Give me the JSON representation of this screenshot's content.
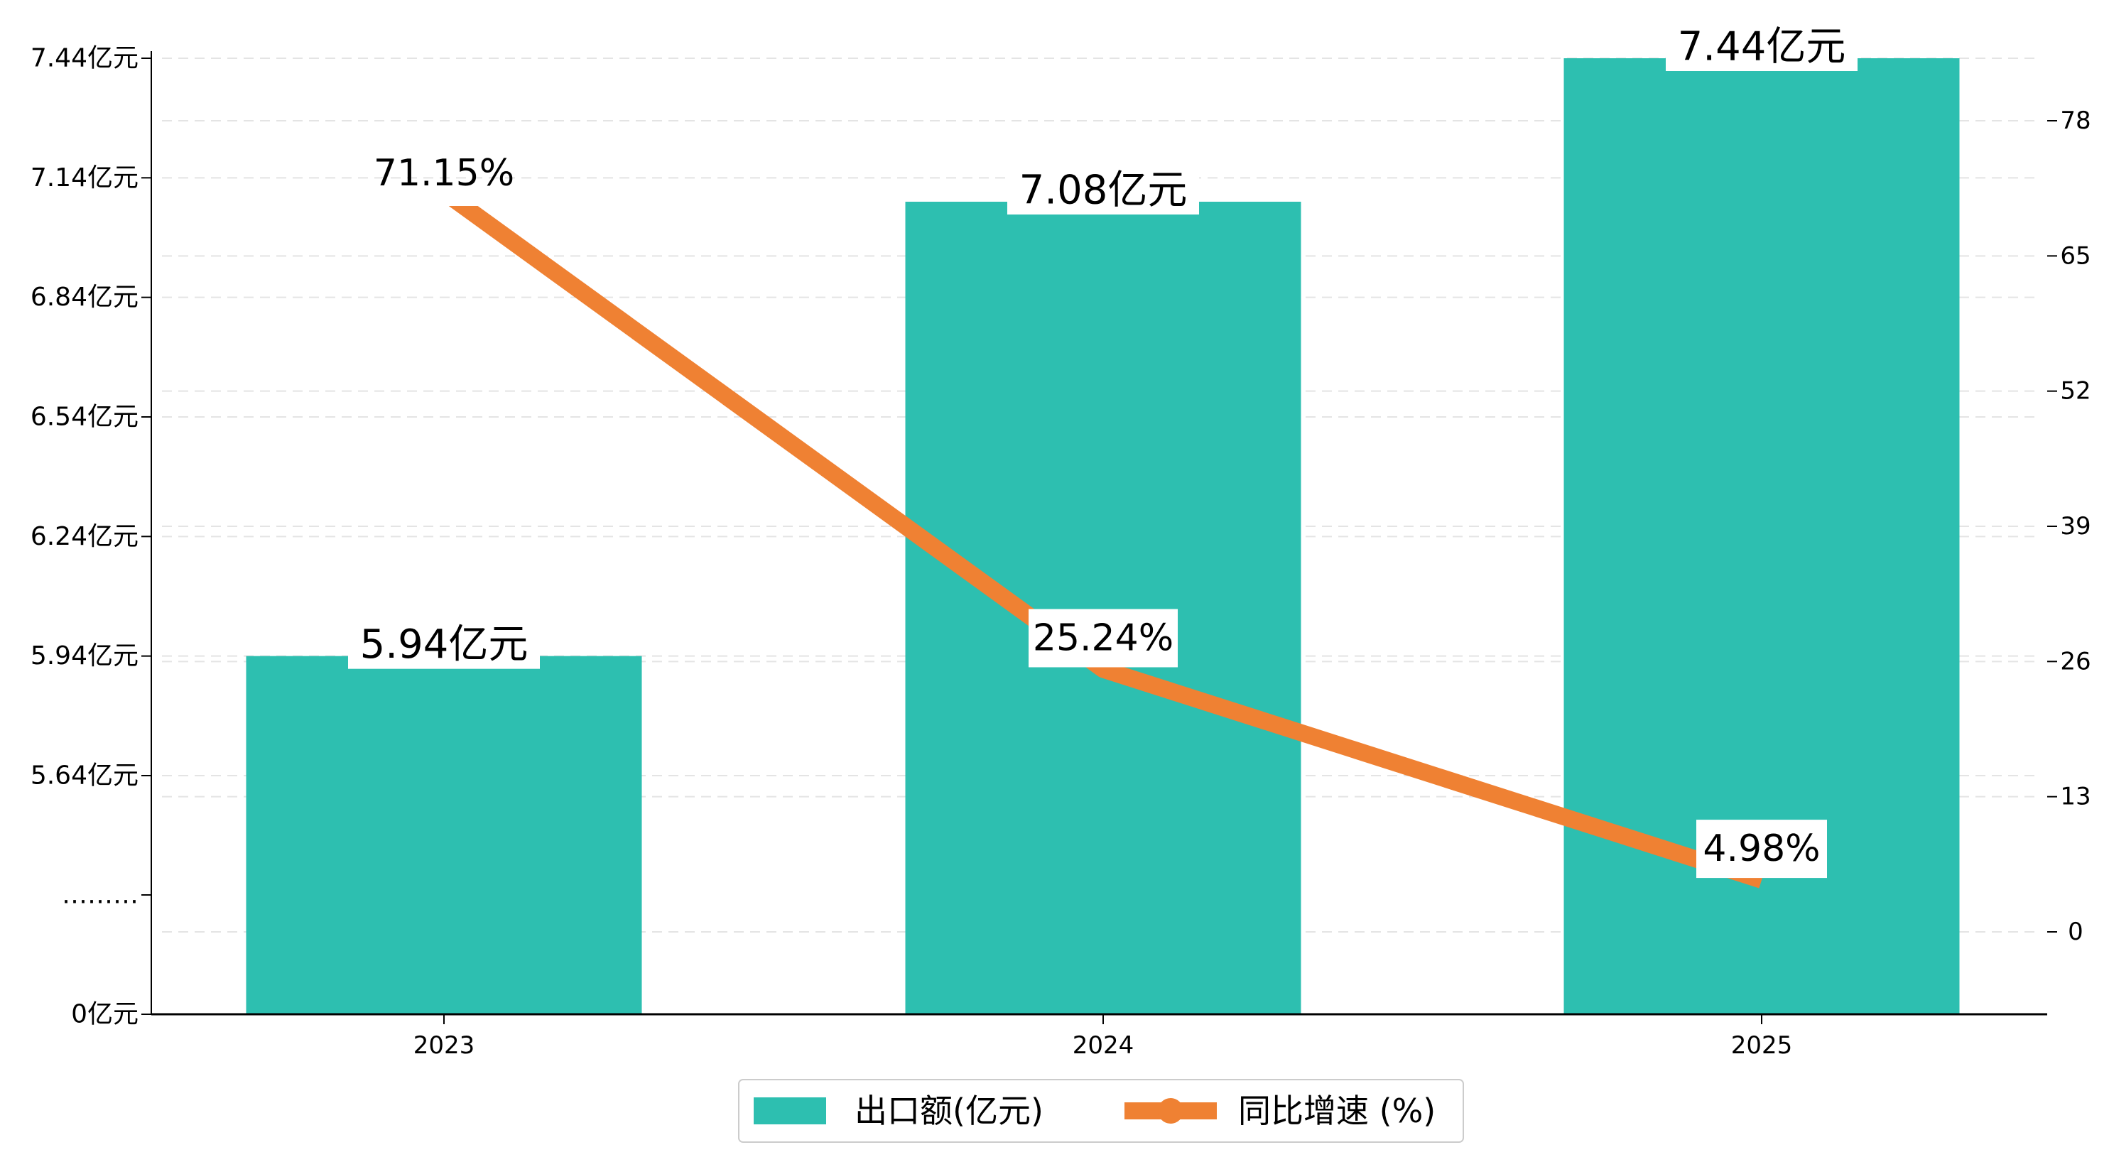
{
  "chart_data": {
    "type": "bar",
    "categories": [
      "2023",
      "2024",
      "2025"
    ],
    "series": [
      {
        "name": "出口额(亿元)",
        "chart_type": "bar",
        "axis": "left",
        "values": [
          5.94,
          7.08,
          7.44
        ],
        "labels": [
          "5.94亿元",
          "7.08亿元",
          "7.44亿元"
        ]
      },
      {
        "name": "同比增速 (%)",
        "chart_type": "line",
        "axis": "right",
        "values": [
          71.15,
          25.24,
          4.98
        ],
        "labels": [
          "71.15%",
          "25.24%",
          "4.98%"
        ]
      }
    ],
    "left_axis": {
      "ticks": [
        {
          "value": 0,
          "label": "0亿元"
        },
        {
          "value": null,
          "label": "………"
        },
        {
          "value": 5.64,
          "label": "5.64亿元"
        },
        {
          "value": 5.94,
          "label": "5.94亿元"
        },
        {
          "value": 6.24,
          "label": "6.24亿元"
        },
        {
          "value": 6.54,
          "label": "6.54亿元"
        },
        {
          "value": 6.84,
          "label": "6.84亿元"
        },
        {
          "value": 7.14,
          "label": "7.14亿元"
        },
        {
          "value": 7.44,
          "label": "7.44亿元"
        }
      ],
      "scale": "broken"
    },
    "right_axis": {
      "ticks": [
        {
          "value": 0,
          "label": "0"
        },
        {
          "value": 13,
          "label": "13"
        },
        {
          "value": 26,
          "label": "26"
        },
        {
          "value": 39,
          "label": "39"
        },
        {
          "value": 52,
          "label": "52"
        },
        {
          "value": 65,
          "label": "65"
        },
        {
          "value": 78,
          "label": "78"
        }
      ],
      "ylim": [
        -8,
        86
      ]
    },
    "grid": true,
    "legend_position": "bottom-center",
    "colors": {
      "bar": "#2dbfb0",
      "line": "#ef8133",
      "axis": "#000000",
      "grid": "#e4e4e4"
    }
  }
}
